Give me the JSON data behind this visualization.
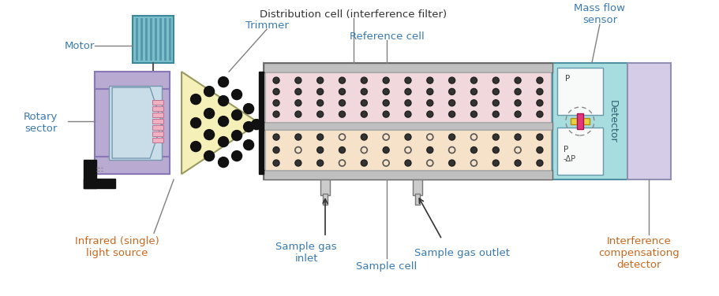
{
  "bg_color": "#ffffff",
  "colors": {
    "motor_blue": "#7bbfcc",
    "motor_stripe": "#5599aa",
    "rotary_purple": "#b8aad0",
    "rotary_light_blue": "#c8dde8",
    "trimmer_yellow": "#f5f0b8",
    "reference_cell_pink": "#f0d8dc",
    "sample_cell_peach": "#f5e2c8",
    "detector_cyan": "#a8dde0",
    "detector_light_purple": "#d5cce8",
    "cell_border": "#888888",
    "label_blue": "#3a7ab0",
    "label_orange": "#c86820",
    "connector_gray": "#808080",
    "pink_element": "#e03878",
    "yellow_element": "#e8d040",
    "white_box": "#f8fafa",
    "black": "#111111",
    "dark_gray": "#555555"
  },
  "labels": {
    "motor": "Motor",
    "distribution_cell": "Distribution cell (interference filter)",
    "trimmer": "Trimmer",
    "reference_cell": "Reference cell",
    "mass_flow_sensor": "Mass flow\nsensor",
    "rotary_sector": "Rotary\nsector",
    "infrared_source": "Infrared (single)\nlight source",
    "sample_gas_inlet": "Sample gas\ninlet",
    "sample_cell": "Sample cell",
    "sample_gas_outlet": "Sample gas outlet",
    "interference_detector": "Interference\ncompensationg\ndetector",
    "detector": "Detector",
    "P_top": "P",
    "P_bot": "P",
    "dP": "−ΔP"
  }
}
